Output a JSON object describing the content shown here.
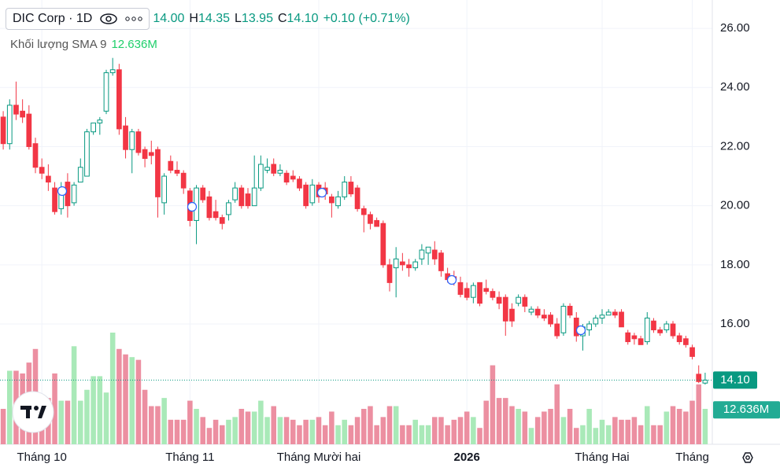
{
  "chart_data": {
    "type": "candlestick",
    "legend": {
      "symbol": "DIC Corp · 1D",
      "open": "14.00",
      "high_key": "H",
      "high": "14.35",
      "low_key": "L",
      "low": "13.95",
      "close_key": "C",
      "close": "14.10",
      "change": "+0.10 (+0.71%)"
    },
    "volume_sma_name": "Khối lượng SMA 9",
    "volume_sma": {
      "value": 12.636,
      "label": "12.636M"
    },
    "last_price": {
      "value": 14.1,
      "label": "14.10"
    },
    "categories": [
      null,
      null,
      null,
      null,
      null,
      null,
      "Tháng 10",
      null,
      null,
      null,
      null,
      null,
      null,
      null,
      null,
      null,
      null,
      null,
      null,
      null,
      null,
      null,
      null,
      null,
      null,
      null,
      null,
      null,
      null,
      "Tháng 11",
      null,
      null,
      null,
      null,
      null,
      null,
      null,
      null,
      null,
      null,
      null,
      null,
      null,
      null,
      null,
      null,
      null,
      null,
      null,
      "Tháng Mười hai",
      null,
      null,
      null,
      null,
      null,
      null,
      null,
      null,
      null,
      null,
      null,
      null,
      null,
      null,
      null,
      null,
      null,
      null,
      null,
      null,
      null,
      null,
      "2026",
      null,
      null,
      null,
      null,
      null,
      null,
      null,
      null,
      null,
      null,
      null,
      null,
      null,
      null,
      null,
      null,
      null,
      null,
      null,
      null,
      "Tháng Hai",
      null,
      null,
      null,
      null,
      null,
      null,
      null,
      null,
      null,
      null,
      null,
      null,
      null,
      "Tháng",
      null,
      null
    ],
    "open": [
      23.0,
      22.1,
      23.4,
      23.2,
      23.1,
      22.1,
      21.3,
      21.0,
      20.6,
      19.9,
      20.8,
      20.1,
      20.8,
      21.0,
      22.5,
      22.8,
      23.2,
      24.5,
      24.6,
      22.7,
      21.9,
      22.5,
      21.9,
      21.8,
      21.9,
      20.1,
      21.5,
      21.2,
      21.1,
      20.5,
      19.5,
      20.6,
      20.3,
      19.8,
      19.6,
      19.7,
      20.2,
      20.6,
      20.4,
      20.0,
      20.6,
      21.2,
      21.4,
      21.1,
      21.1,
      21.0,
      20.9,
      20.7,
      20.1,
      20.7,
      20.6,
      20.3,
      20.0,
      20.3,
      20.8,
      20.6,
      19.9,
      19.7,
      19.5,
      19.4,
      18.0,
      17.9,
      18.1,
      18.0,
      17.9,
      18.2,
      18.4,
      18.5,
      18.4,
      17.7,
      17.6,
      17.4,
      17.2,
      16.9,
      17.4,
      17.2,
      17.1,
      16.9,
      16.9,
      16.5,
      16.7,
      16.9,
      16.4,
      16.5,
      16.3,
      16.3,
      16.0,
      15.7,
      16.6,
      16.2,
      15.6,
      15.8,
      16.0,
      16.2,
      16.3,
      16.4,
      16.4,
      15.7,
      15.6,
      15.5,
      15.4,
      16.1,
      15.8,
      15.8,
      16.0,
      15.6,
      15.5,
      15.2,
      14.3,
      14.0
    ],
    "high": [
      23.2,
      23.6,
      24.2,
      23.6,
      23.4,
      22.3,
      21.6,
      21.4,
      20.8,
      20.8,
      21.1,
      20.8,
      21.6,
      22.6,
      22.8,
      23.0,
      24.6,
      25.0,
      24.8,
      23.0,
      22.6,
      22.6,
      22.0,
      22.2,
      22.0,
      21.1,
      21.7,
      21.5,
      21.2,
      20.6,
      20.7,
      20.7,
      20.5,
      20.2,
      19.7,
      20.2,
      20.8,
      20.7,
      20.6,
      21.7,
      21.7,
      21.6,
      21.6,
      21.4,
      21.2,
      21.2,
      21.0,
      20.8,
      20.9,
      20.8,
      20.8,
      20.4,
      20.5,
      21.0,
      21.0,
      20.7,
      20.0,
      19.8,
      19.6,
      19.5,
      18.2,
      18.6,
      18.4,
      18.2,
      18.2,
      18.7,
      18.6,
      18.8,
      18.5,
      17.9,
      17.8,
      17.6,
      17.4,
      17.4,
      17.4,
      17.5,
      17.2,
      17.1,
      17.0,
      16.7,
      17.0,
      17.0,
      16.6,
      16.6,
      16.5,
      16.4,
      16.2,
      16.7,
      16.7,
      16.4,
      16.0,
      16.1,
      16.3,
      16.5,
      16.5,
      16.5,
      16.5,
      15.8,
      15.7,
      15.6,
      16.4,
      16.2,
      15.9,
      16.1,
      16.1,
      15.7,
      15.6,
      15.3,
      14.6,
      14.35
    ],
    "low": [
      21.9,
      21.9,
      22.9,
      22.8,
      21.9,
      21.1,
      20.9,
      20.5,
      19.7,
      19.7,
      19.6,
      20.0,
      20.8,
      21.0,
      22.4,
      22.4,
      23.1,
      24.4,
      22.4,
      21.6,
      21.1,
      21.7,
      21.3,
      21.4,
      19.6,
      19.7,
      21.1,
      21.0,
      20.4,
      19.3,
      18.7,
      20.1,
      19.5,
      19.5,
      19.2,
      19.5,
      20.1,
      19.9,
      19.9,
      20.0,
      20.5,
      21.1,
      21.0,
      21.0,
      20.7,
      20.8,
      20.5,
      19.9,
      20.0,
      20.1,
      20.2,
      19.6,
      19.9,
      20.2,
      20.3,
      19.8,
      19.1,
      19.2,
      19.3,
      17.9,
      17.1,
      16.9,
      17.8,
      17.6,
      17.8,
      18.0,
      18.0,
      18.0,
      17.6,
      17.4,
      17.3,
      16.9,
      16.8,
      16.7,
      16.6,
      17.0,
      16.8,
      16.5,
      15.6,
      15.9,
      16.6,
      16.4,
      16.3,
      16.2,
      16.1,
      15.9,
      15.5,
      15.6,
      16.2,
      15.4,
      15.1,
      15.6,
      15.9,
      16.0,
      16.3,
      16.2,
      15.9,
      15.3,
      15.3,
      15.3,
      15.3,
      15.7,
      15.6,
      15.7,
      15.5,
      15.3,
      15.2,
      14.8,
      14.0,
      13.95
    ],
    "close": [
      22.1,
      23.4,
      23.1,
      23.0,
      22.0,
      21.3,
      21.1,
      20.8,
      19.8,
      20.6,
      20.0,
      20.7,
      21.3,
      22.5,
      22.8,
      22.9,
      24.5,
      24.6,
      22.6,
      21.9,
      22.5,
      21.8,
      21.6,
      21.7,
      20.3,
      21.0,
      21.2,
      21.1,
      20.6,
      19.5,
      20.6,
      20.2,
      19.6,
      19.6,
      19.4,
      20.1,
      20.6,
      20.0,
      20.0,
      20.6,
      21.4,
      21.3,
      21.1,
      21.2,
      20.8,
      20.9,
      20.6,
      20.0,
      20.7,
      20.3,
      20.4,
      20.1,
      20.3,
      20.8,
      20.4,
      19.9,
      19.7,
      19.4,
      19.3,
      18.0,
      17.4,
      18.2,
      18.0,
      17.9,
      18.1,
      18.5,
      18.6,
      18.2,
      17.8,
      17.5,
      17.5,
      17.0,
      16.9,
      17.3,
      16.7,
      17.1,
      16.9,
      16.7,
      16.1,
      16.1,
      16.9,
      16.6,
      16.5,
      16.3,
      16.2,
      16.0,
      15.6,
      16.6,
      16.3,
      15.6,
      15.9,
      16.0,
      16.2,
      16.3,
      16.4,
      16.3,
      15.9,
      15.4,
      15.5,
      15.3,
      16.2,
      15.8,
      15.7,
      16.0,
      15.6,
      15.4,
      15.3,
      14.9,
      14.05,
      14.1
    ],
    "volume": [
      13,
      27,
      27,
      26,
      30,
      35,
      17,
      17,
      26,
      16,
      16,
      36,
      16,
      20,
      25,
      25,
      19,
      41,
      35,
      33,
      32,
      31,
      20,
      14,
      14,
      17,
      9,
      9,
      9,
      16,
      13,
      10,
      6,
      9,
      7,
      9,
      10,
      13,
      12,
      12,
      16,
      10,
      14,
      10,
      10,
      9,
      7,
      9,
      9,
      10,
      7,
      12,
      7,
      9,
      7,
      10,
      13,
      14,
      7,
      10,
      14,
      14,
      7,
      7,
      9,
      7,
      7,
      10,
      10,
      7,
      9,
      10,
      12,
      10,
      6,
      16,
      29,
      17,
      17,
      14,
      13,
      12,
      6,
      10,
      12,
      13,
      22,
      10,
      13,
      6,
      7,
      13,
      6,
      9,
      7,
      10,
      9,
      9,
      10,
      7,
      14,
      7,
      7,
      12,
      14,
      13,
      12,
      16,
      22,
      13
    ],
    "up_color": "#089981",
    "down_color": "#f23645",
    "hollow_up": true,
    "volume_up_color": "#a9e9b8",
    "volume_down_color": "#ec8fa1",
    "ylim": [
      11.93,
      26.96
    ],
    "yticks": [
      {
        "value": 16,
        "label": "16.00"
      },
      {
        "value": 18,
        "label": "18.00"
      },
      {
        "value": 20,
        "label": "20.00"
      },
      {
        "value": 22,
        "label": "22.00"
      },
      {
        "value": 24,
        "label": "24.00"
      },
      {
        "value": 26,
        "label": "26.00"
      }
    ],
    "grid": true
  }
}
